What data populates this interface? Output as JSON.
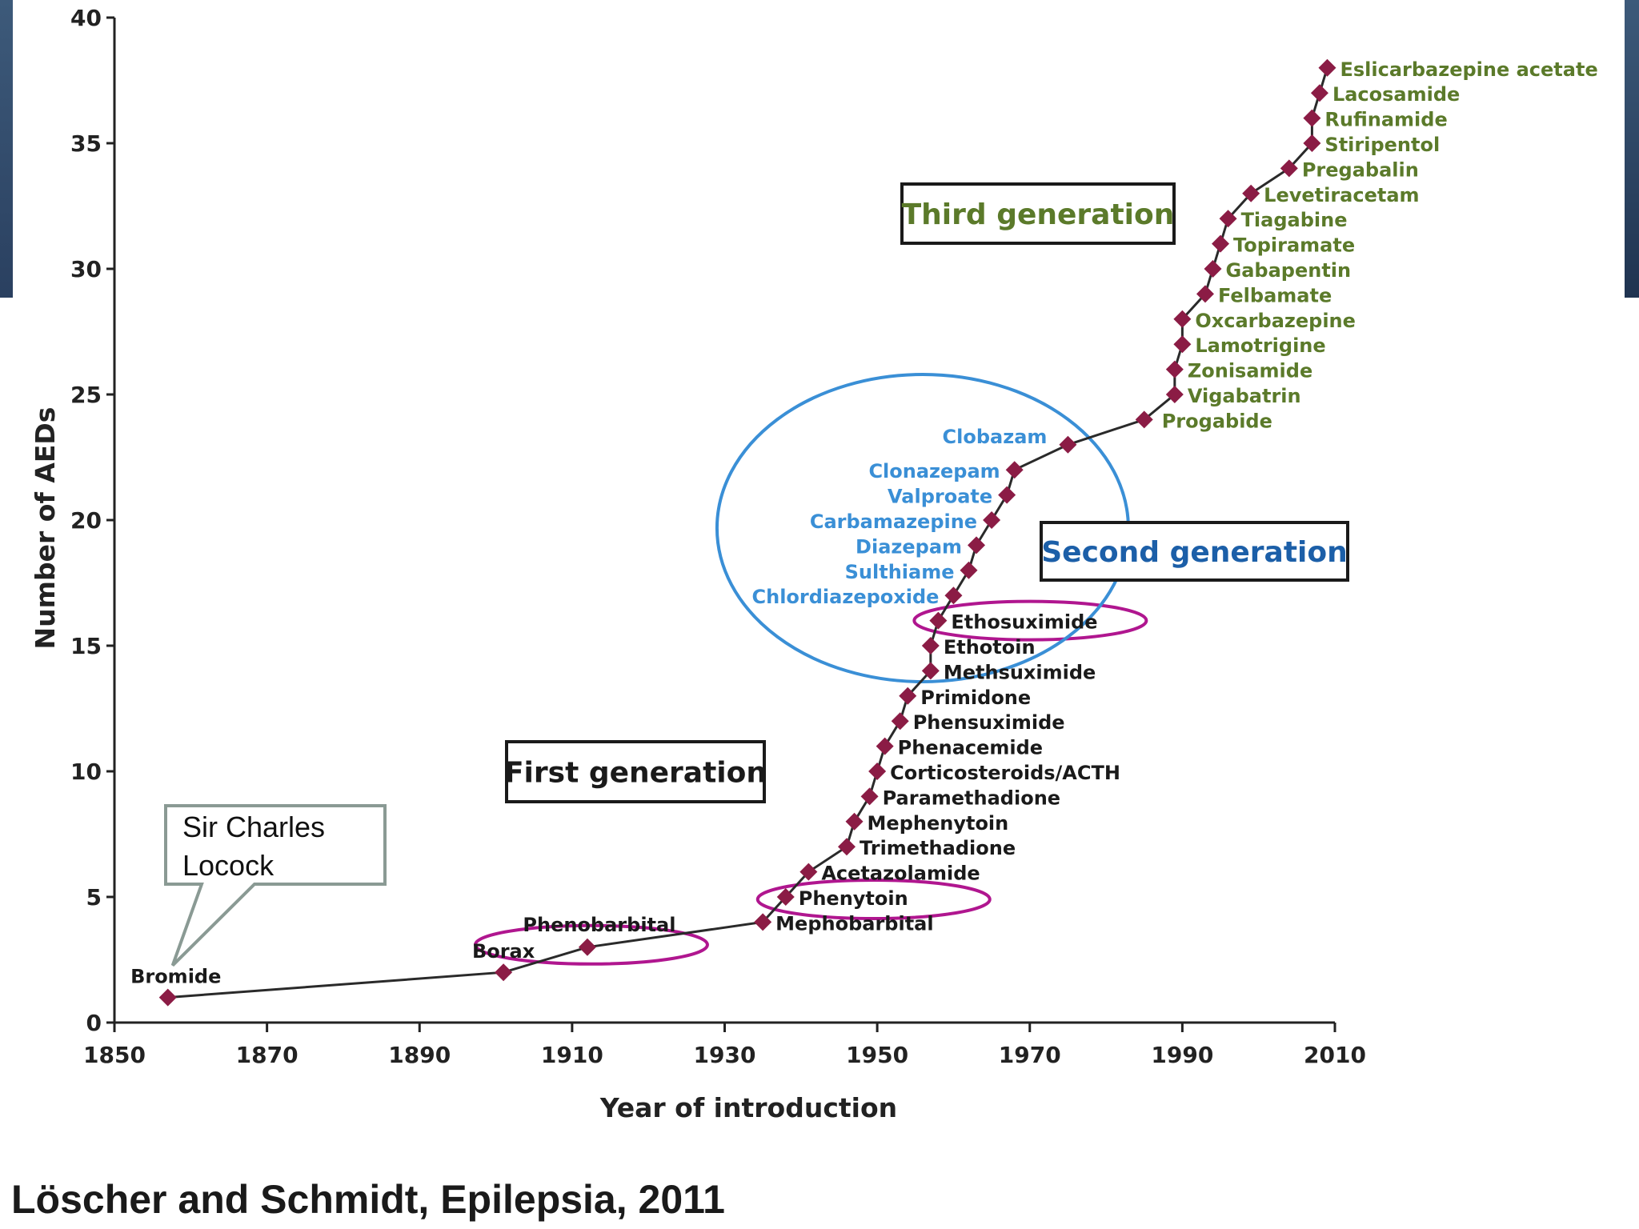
{
  "chart_data": {
    "type": "line",
    "xlabel": "Year of introduction",
    "ylabel": "Number of AEDs",
    "xlim": [
      1850,
      2010
    ],
    "ylim": [
      0,
      40
    ],
    "xticks": [
      "1850",
      "1870",
      "1890",
      "1910",
      "1930",
      "1950",
      "1970",
      "1990",
      "2010"
    ],
    "yticks": [
      "0",
      "5",
      "10",
      "15",
      "20",
      "25",
      "30",
      "35",
      "40"
    ],
    "grid": false,
    "series": [
      {
        "name": "AEDs",
        "color": "#8b1c45",
        "points": [
          {
            "x": 1857,
            "y": 1,
            "label": "Bromide",
            "group": "first"
          },
          {
            "x": 1901,
            "y": 2,
            "label": "Borax",
            "group": "first"
          },
          {
            "x": 1912,
            "y": 3,
            "label": "Phenobarbital",
            "group": "first"
          },
          {
            "x": 1935,
            "y": 4,
            "label": "Mephobarbital",
            "group": "first"
          },
          {
            "x": 1938,
            "y": 5,
            "label": "Phenytoin",
            "group": "first"
          },
          {
            "x": 1941,
            "y": 6,
            "label": "Acetazolamide",
            "group": "first"
          },
          {
            "x": 1946,
            "y": 7,
            "label": "Trimethadione",
            "group": "first"
          },
          {
            "x": 1947,
            "y": 8,
            "label": "Mephenytoin",
            "group": "first"
          },
          {
            "x": 1949,
            "y": 9,
            "label": "Paramethadione",
            "group": "first"
          },
          {
            "x": 1950,
            "y": 10,
            "label": "Corticosteroids/ACTH",
            "group": "first"
          },
          {
            "x": 1951,
            "y": 11,
            "label": "Phenacemide",
            "group": "first"
          },
          {
            "x": 1953,
            "y": 12,
            "label": "Phensuximide",
            "group": "first"
          },
          {
            "x": 1954,
            "y": 13,
            "label": "Primidone",
            "group": "first"
          },
          {
            "x": 1957,
            "y": 14,
            "label": "Methsuximide",
            "group": "first"
          },
          {
            "x": 1957,
            "y": 15,
            "label": "Ethotoin",
            "group": "first"
          },
          {
            "x": 1958,
            "y": 16,
            "label": "Ethosuximide",
            "group": "first"
          },
          {
            "x": 1960,
            "y": 17,
            "label": "Chlordiazepoxide",
            "group": "second"
          },
          {
            "x": 1962,
            "y": 18,
            "label": "Sulthiame",
            "group": "second"
          },
          {
            "x": 1963,
            "y": 19,
            "label": "Diazepam",
            "group": "second"
          },
          {
            "x": 1965,
            "y": 20,
            "label": "Carbamazepine",
            "group": "second"
          },
          {
            "x": 1967,
            "y": 21,
            "label": "Valproate",
            "group": "second"
          },
          {
            "x": 1968,
            "y": 22,
            "label": "Clonazepam",
            "group": "second"
          },
          {
            "x": 1975,
            "y": 23,
            "label": "Clobazam",
            "group": "second"
          },
          {
            "x": 1985,
            "y": 24,
            "label": "Progabide",
            "group": "third"
          },
          {
            "x": 1989,
            "y": 25,
            "label": "Vigabatrin",
            "group": "third"
          },
          {
            "x": 1989,
            "y": 26,
            "label": "Zonisamide",
            "group": "third"
          },
          {
            "x": 1990,
            "y": 27,
            "label": "Lamotrigine",
            "group": "third"
          },
          {
            "x": 1990,
            "y": 28,
            "label": "Oxcarbazepine",
            "group": "third"
          },
          {
            "x": 1993,
            "y": 29,
            "label": "Felbamate",
            "group": "third"
          },
          {
            "x": 1994,
            "y": 30,
            "label": "Gabapentin",
            "group": "third"
          },
          {
            "x": 1995,
            "y": 31,
            "label": "Topiramate",
            "group": "third"
          },
          {
            "x": 1996,
            "y": 32,
            "label": "Tiagabine",
            "group": "third"
          },
          {
            "x": 1999,
            "y": 33,
            "label": "Levetiracetam",
            "group": "third"
          },
          {
            "x": 2004,
            "y": 34,
            "label": "Pregabalin",
            "group": "third"
          },
          {
            "x": 2007,
            "y": 35,
            "label": "Stiripentol",
            "group": "third"
          },
          {
            "x": 2007,
            "y": 36,
            "label": "Rufinamide",
            "group": "third"
          },
          {
            "x": 2008,
            "y": 37,
            "label": "Lacosamide",
            "group": "third"
          },
          {
            "x": 2009,
            "y": 38,
            "label": "Eslicarbazepine acetate",
            "group": "third"
          }
        ]
      }
    ],
    "generation_boxes": {
      "first": "First generation",
      "second": "Second generation",
      "third": "Third generation"
    },
    "group_colors": {
      "first": "#1a1a1a",
      "second": "#3a8fd6",
      "third": "#5b7a2a"
    },
    "highlight_color": "#b0168f",
    "circle_color": "#3a8fd6",
    "highlighted_drugs": [
      "Phenobarbital",
      "Phenytoin",
      "Ethosuximide"
    ],
    "circled_group": "second"
  },
  "callout": {
    "line1": "Sir Charles",
    "line2": "Locock",
    "points_to": "Bromide"
  },
  "citation": "Löscher and Schmidt, Epilepsia, 2011"
}
